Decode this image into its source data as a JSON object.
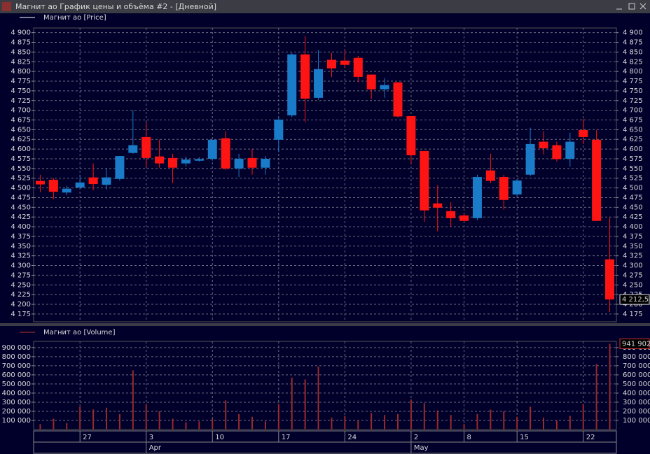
{
  "window": {
    "title": "Магнит ао График цены и объёма #2 - [Дневной]"
  },
  "chart_data": [
    {
      "type": "candlestick",
      "legend": "Магнит ао [Price]",
      "up_color": "#1a7cc8",
      "down_color": "#ff1414",
      "grid": true,
      "open": [
        4518,
        4521,
        4488,
        4501,
        4527,
        4508,
        4523,
        4590,
        4631,
        4581,
        4577,
        4563,
        4570,
        4575,
        4628,
        4550,
        4577,
        4552,
        4624,
        4687,
        4844,
        4732,
        4830,
        4828,
        4835,
        4792,
        4754,
        4772,
        4685,
        4595,
        4460,
        4440,
        4429,
        4422,
        4545,
        4528,
        4483,
        4534,
        4619,
        4610,
        4575,
        4649,
        4624,
        4316
      ],
      "high": [
        4534,
        4525,
        4505,
        4534,
        4563,
        4550,
        4582,
        4700,
        4669,
        4624,
        4588,
        4581,
        4579,
        4624,
        4646,
        4588,
        4600,
        4582,
        4682,
        4848,
        4891,
        4855,
        4848,
        4855,
        4840,
        4792,
        4783,
        4772,
        4685,
        4595,
        4507,
        4463,
        4433,
        4534,
        4588,
        4534,
        4523,
        4655,
        4646,
        4619,
        4642,
        4678,
        4649,
        4424
      ],
      "low": [
        4489,
        4471,
        4481,
        4498,
        4494,
        4496,
        4519,
        4588,
        4552,
        4552,
        4512,
        4555,
        4568,
        4570,
        4546,
        4528,
        4534,
        4534,
        4592,
        4682,
        4669,
        4727,
        4786,
        4808,
        4772,
        4729,
        4732,
        4682,
        4563,
        4413,
        4388,
        4400,
        4413,
        4417,
        4512,
        4444,
        4478,
        4530,
        4586,
        4568,
        4555,
        4613,
        4415,
        4180
      ],
      "close": [
        4509,
        4490,
        4498,
        4514,
        4510,
        4527,
        4582,
        4610,
        4577,
        4563,
        4552,
        4573,
        4574,
        4624,
        4550,
        4575,
        4552,
        4575,
        4676,
        4844,
        4730,
        4806,
        4808,
        4817,
        4786,
        4754,
        4765,
        4684,
        4584,
        4442,
        4449,
        4422,
        4415,
        4528,
        4518,
        4469,
        4519,
        4613,
        4602,
        4574,
        4619,
        4631,
        4415,
        4212.5
      ],
      "last_label": "4 212,5",
      "ylim": [
        4155,
        4912
      ],
      "yticks": [
        {
          "value": 4175,
          "label": "4 175"
        },
        {
          "value": 4200,
          "label": "4 200"
        },
        {
          "value": 4225,
          "label": "4 225"
        },
        {
          "value": 4250,
          "label": "4 250"
        },
        {
          "value": 4275,
          "label": "4 275"
        },
        {
          "value": 4300,
          "label": "4 300"
        },
        {
          "value": 4325,
          "label": "4 325"
        },
        {
          "value": 4350,
          "label": "4 350"
        },
        {
          "value": 4375,
          "label": "4 375"
        },
        {
          "value": 4400,
          "label": "4 400"
        },
        {
          "value": 4425,
          "label": "4 425"
        },
        {
          "value": 4450,
          "label": "4 450"
        },
        {
          "value": 4475,
          "label": "4 475"
        },
        {
          "value": 4500,
          "label": "4 500"
        },
        {
          "value": 4525,
          "label": "4 525"
        },
        {
          "value": 4550,
          "label": "4 550"
        },
        {
          "value": 4575,
          "label": "4 575"
        },
        {
          "value": 4600,
          "label": "4 600"
        },
        {
          "value": 4625,
          "label": "4 625"
        },
        {
          "value": 4650,
          "label": "4 650"
        },
        {
          "value": 4675,
          "label": "4 675"
        },
        {
          "value": 4700,
          "label": "4 700"
        },
        {
          "value": 4725,
          "label": "4 725"
        },
        {
          "value": 4750,
          "label": "4 750"
        },
        {
          "value": 4775,
          "label": "4 775"
        },
        {
          "value": 4800,
          "label": "4 800"
        },
        {
          "value": 4825,
          "label": "4 825"
        },
        {
          "value": 4850,
          "label": "4 850"
        },
        {
          "value": 4875,
          "label": "4 875"
        },
        {
          "value": 4900,
          "label": "4 900"
        }
      ]
    },
    {
      "type": "bar",
      "legend": "Магнит ао [Volume]",
      "color": "#9a2a2a",
      "grid": true,
      "categories": [
        null,
        null,
        null,
        "27",
        null,
        null,
        null,
        null,
        "3",
        null,
        null,
        null,
        null,
        "10",
        null,
        null,
        null,
        null,
        "17",
        null,
        null,
        null,
        null,
        "24",
        null,
        null,
        null,
        null,
        "2",
        null,
        null,
        null,
        "8",
        null,
        null,
        null,
        "15",
        null,
        null,
        null,
        null,
        "22",
        null,
        null
      ],
      "month_labels": [
        null,
        null,
        null,
        null,
        null,
        null,
        null,
        null,
        "Apr",
        null,
        null,
        null,
        null,
        null,
        null,
        null,
        null,
        null,
        null,
        null,
        null,
        null,
        null,
        null,
        null,
        null,
        null,
        null,
        "May",
        null,
        null,
        null,
        null,
        null,
        null,
        null,
        null,
        null,
        null,
        null,
        null,
        null,
        null,
        null
      ],
      "values": [
        60000,
        120000,
        70000,
        250000,
        220000,
        240000,
        170000,
        650000,
        280000,
        200000,
        120000,
        80000,
        90000,
        120000,
        320000,
        170000,
        140000,
        90000,
        280000,
        570000,
        550000,
        690000,
        130000,
        150000,
        100000,
        180000,
        160000,
        170000,
        330000,
        290000,
        210000,
        160000,
        60000,
        170000,
        220000,
        200000,
        140000,
        250000,
        130000,
        100000,
        150000,
        280000,
        720000,
        941902
      ],
      "last_label": "941 902",
      "ylim": [
        0,
        968000
      ],
      "yticks": [
        {
          "value": 100000,
          "label": "100 000"
        },
        {
          "value": 200000,
          "label": "200 000"
        },
        {
          "value": 300000,
          "label": "300 000"
        },
        {
          "value": 400000,
          "label": "400 000"
        },
        {
          "value": 500000,
          "label": "500 000"
        },
        {
          "value": 600000,
          "label": "600 000"
        },
        {
          "value": 700000,
          "label": "700 000"
        },
        {
          "value": 800000,
          "label": "800 000"
        },
        {
          "value": 900000,
          "label": "900 000"
        }
      ]
    }
  ]
}
